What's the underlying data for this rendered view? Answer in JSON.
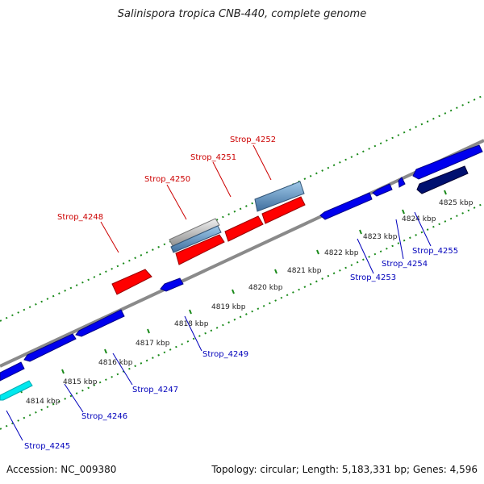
{
  "title": "Salinispora tropica CNB-440, complete genome",
  "footer": {
    "accession": "Accession: NC_009380",
    "stats": "Topology: circular; Length: 5,183,331 bp; Genes: 4,596"
  },
  "colors": {
    "forward_gene": "#ff0000",
    "reverse_gene": "#0000ee",
    "forward_label": "#cc0000",
    "reverse_label": "#0000bb",
    "backbone": "#888888",
    "tick": "#1a8a1a"
  },
  "ticks": [
    "4814 kbp",
    "4815 kbp",
    "4816 kbp",
    "4817 kbp",
    "4818 kbp",
    "4819 kbp",
    "4820 kbp",
    "4821 kbp",
    "4822 kbp",
    "4823 kbp",
    "4824 kbp",
    "4825 kbp"
  ],
  "forward_labels": [
    "Strop_4248",
    "Strop_4250",
    "Strop_4251",
    "Strop_4252"
  ],
  "reverse_labels": [
    "Strop_4245",
    "Strop_4246",
    "Strop_4247",
    "Strop_4249",
    "Strop_4253",
    "Strop_4254",
    "Strop_4255"
  ]
}
